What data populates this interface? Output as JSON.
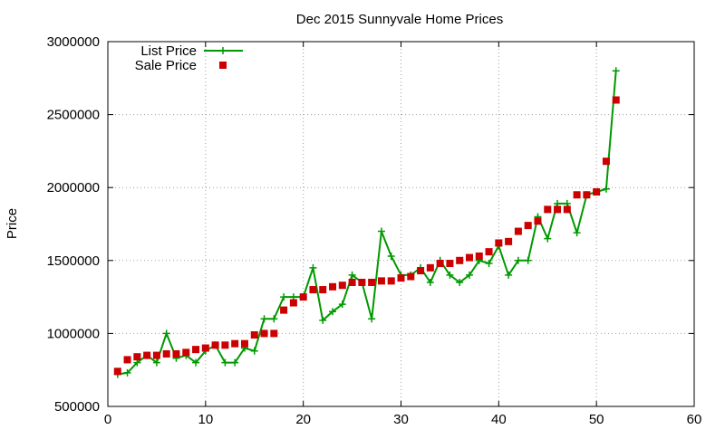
{
  "chart_data": {
    "type": "line",
    "title": "Dec 2015 Sunnyvale Home Prices",
    "xlabel": "",
    "ylabel": "Price",
    "xlim": [
      0,
      60
    ],
    "ylim": [
      500000,
      3000000
    ],
    "x_ticks": [
      0,
      10,
      20,
      30,
      40,
      50,
      60
    ],
    "x_tick_labels": [
      "0",
      "10",
      "20",
      "30",
      "40",
      "50",
      "60"
    ],
    "y_ticks": [
      500000,
      1000000,
      1500000,
      2000000,
      2500000,
      3000000
    ],
    "y_tick_labels": [
      "500000",
      "1000000",
      "1500000",
      "2000000",
      "2500000",
      "3000000"
    ],
    "grid": true,
    "legend_position": "top-left",
    "series": [
      {
        "name": "List Price",
        "style": "line-with-plus-markers",
        "color": "#009900",
        "x": [
          1,
          2,
          3,
          4,
          5,
          6,
          7,
          8,
          9,
          10,
          11,
          12,
          13,
          14,
          15,
          16,
          17,
          18,
          19,
          20,
          21,
          22,
          23,
          24,
          25,
          26,
          27,
          28,
          29,
          30,
          31,
          32,
          33,
          34,
          35,
          36,
          37,
          38,
          39,
          40,
          41,
          42,
          43,
          44,
          45,
          46,
          47,
          48,
          49,
          50,
          51,
          52
        ],
        "y": [
          720000,
          730000,
          800000,
          850000,
          800000,
          1000000,
          830000,
          850000,
          800000,
          880000,
          920000,
          800000,
          800000,
          900000,
          880000,
          1100000,
          1100000,
          1250000,
          1250000,
          1250000,
          1450000,
          1090000,
          1150000,
          1200000,
          1400000,
          1350000,
          1100000,
          1700000,
          1530000,
          1400000,
          1400000,
          1450000,
          1350000,
          1500000,
          1400000,
          1350000,
          1400000,
          1500000,
          1480000,
          1600000,
          1400000,
          1500000,
          1500000,
          1800000,
          1650000,
          1890000,
          1890000,
          1690000,
          1950000,
          1970000,
          1990000,
          2800000
        ]
      },
      {
        "name": "Sale Price",
        "style": "square-markers",
        "color": "#cc0000",
        "x": [
          1,
          2,
          3,
          4,
          5,
          6,
          7,
          8,
          9,
          10,
          11,
          12,
          13,
          14,
          15,
          16,
          17,
          18,
          19,
          20,
          21,
          22,
          23,
          24,
          25,
          26,
          27,
          28,
          29,
          30,
          31,
          32,
          33,
          34,
          35,
          36,
          37,
          38,
          39,
          40,
          41,
          42,
          43,
          44,
          45,
          46,
          47,
          48,
          49,
          50,
          51,
          52
        ],
        "y": [
          740000,
          820000,
          840000,
          850000,
          850000,
          860000,
          860000,
          870000,
          890000,
          900000,
          920000,
          920000,
          930000,
          930000,
          990000,
          1000000,
          1000000,
          1160000,
          1210000,
          1250000,
          1300000,
          1300000,
          1320000,
          1330000,
          1350000,
          1350000,
          1350000,
          1360000,
          1360000,
          1380000,
          1390000,
          1430000,
          1450000,
          1480000,
          1480000,
          1500000,
          1520000,
          1530000,
          1560000,
          1620000,
          1630000,
          1700000,
          1740000,
          1770000,
          1850000,
          1850000,
          1850000,
          1950000,
          1950000,
          1970000,
          2180000,
          2600000
        ]
      }
    ]
  }
}
